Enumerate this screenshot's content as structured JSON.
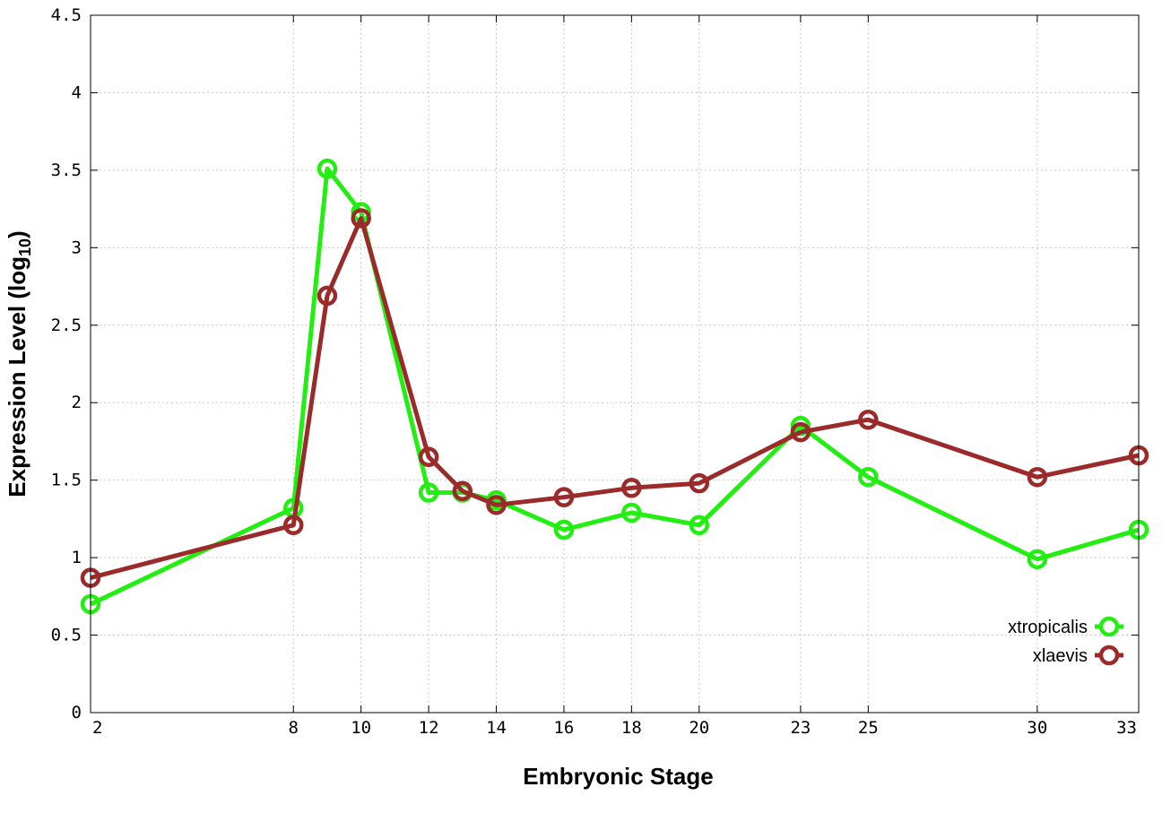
{
  "chart_data": {
    "type": "line",
    "xlabel": "Embryonic Stage",
    "ylabel_main": "Expression Level (log",
    "ylabel_sub": "10",
    "ylabel_close": ")",
    "xlim": [
      2,
      33
    ],
    "ylim": [
      0,
      4.5
    ],
    "xticks": [
      2,
      8,
      10,
      12,
      14,
      16,
      18,
      20,
      23,
      25,
      30,
      33
    ],
    "yticks": [
      0,
      0.5,
      1,
      1.5,
      2,
      2.5,
      3,
      3.5,
      4,
      4.5
    ],
    "ytick_labels": [
      "0",
      "0.5",
      "1",
      "1.5",
      "2",
      "2.5",
      "3",
      "3.5",
      "4",
      "4.5"
    ],
    "grid": true,
    "legend_position": "bottom-right",
    "x": [
      2,
      8,
      9,
      10,
      12,
      13,
      14,
      16,
      18,
      20,
      23,
      25,
      30,
      33
    ],
    "series": [
      {
        "name": "xtropicalis",
        "color": "#22ee11",
        "values": [
          0.7,
          1.32,
          3.51,
          3.23,
          1.42,
          1.42,
          1.37,
          1.18,
          1.29,
          1.21,
          1.85,
          1.52,
          0.99,
          1.18
        ]
      },
      {
        "name": "xlaevis",
        "color": "#9b2a2a",
        "values": [
          0.87,
          1.21,
          2.69,
          3.19,
          1.65,
          1.43,
          1.34,
          1.39,
          1.45,
          1.48,
          1.81,
          1.89,
          1.52,
          1.66
        ]
      }
    ]
  }
}
